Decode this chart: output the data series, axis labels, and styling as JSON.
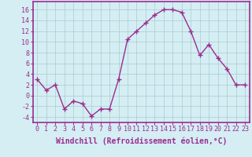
{
  "x": [
    0,
    1,
    2,
    3,
    4,
    5,
    6,
    7,
    8,
    9,
    10,
    11,
    12,
    13,
    14,
    15,
    16,
    17,
    18,
    19,
    20,
    21,
    22,
    23
  ],
  "y": [
    3,
    1,
    2,
    -2.5,
    -1,
    -1.5,
    -3.8,
    -2.5,
    -2.5,
    3,
    10.5,
    12,
    13.5,
    15,
    16,
    16,
    15.5,
    12,
    7.5,
    9.5,
    7,
    5,
    2,
    2
  ],
  "line_color": "#9b2d8e",
  "marker": "+",
  "marker_size": 4,
  "marker_color": "#9b2d8e",
  "xlabel": "Windchill (Refroidissement éolien,°C)",
  "xlabel_fontsize": 7,
  "yticks": [
    -4,
    -2,
    0,
    2,
    4,
    6,
    8,
    10,
    12,
    14,
    16
  ],
  "xlim": [
    -0.5,
    23.5
  ],
  "ylim": [
    -5.0,
    17.5
  ],
  "bg_color": "#d4eef4",
  "grid_color": "#aacccc",
  "axis_color": "#9b2d8e",
  "tick_color": "#9b2d8e",
  "tick_fontsize": 6,
  "linewidth": 1.0
}
